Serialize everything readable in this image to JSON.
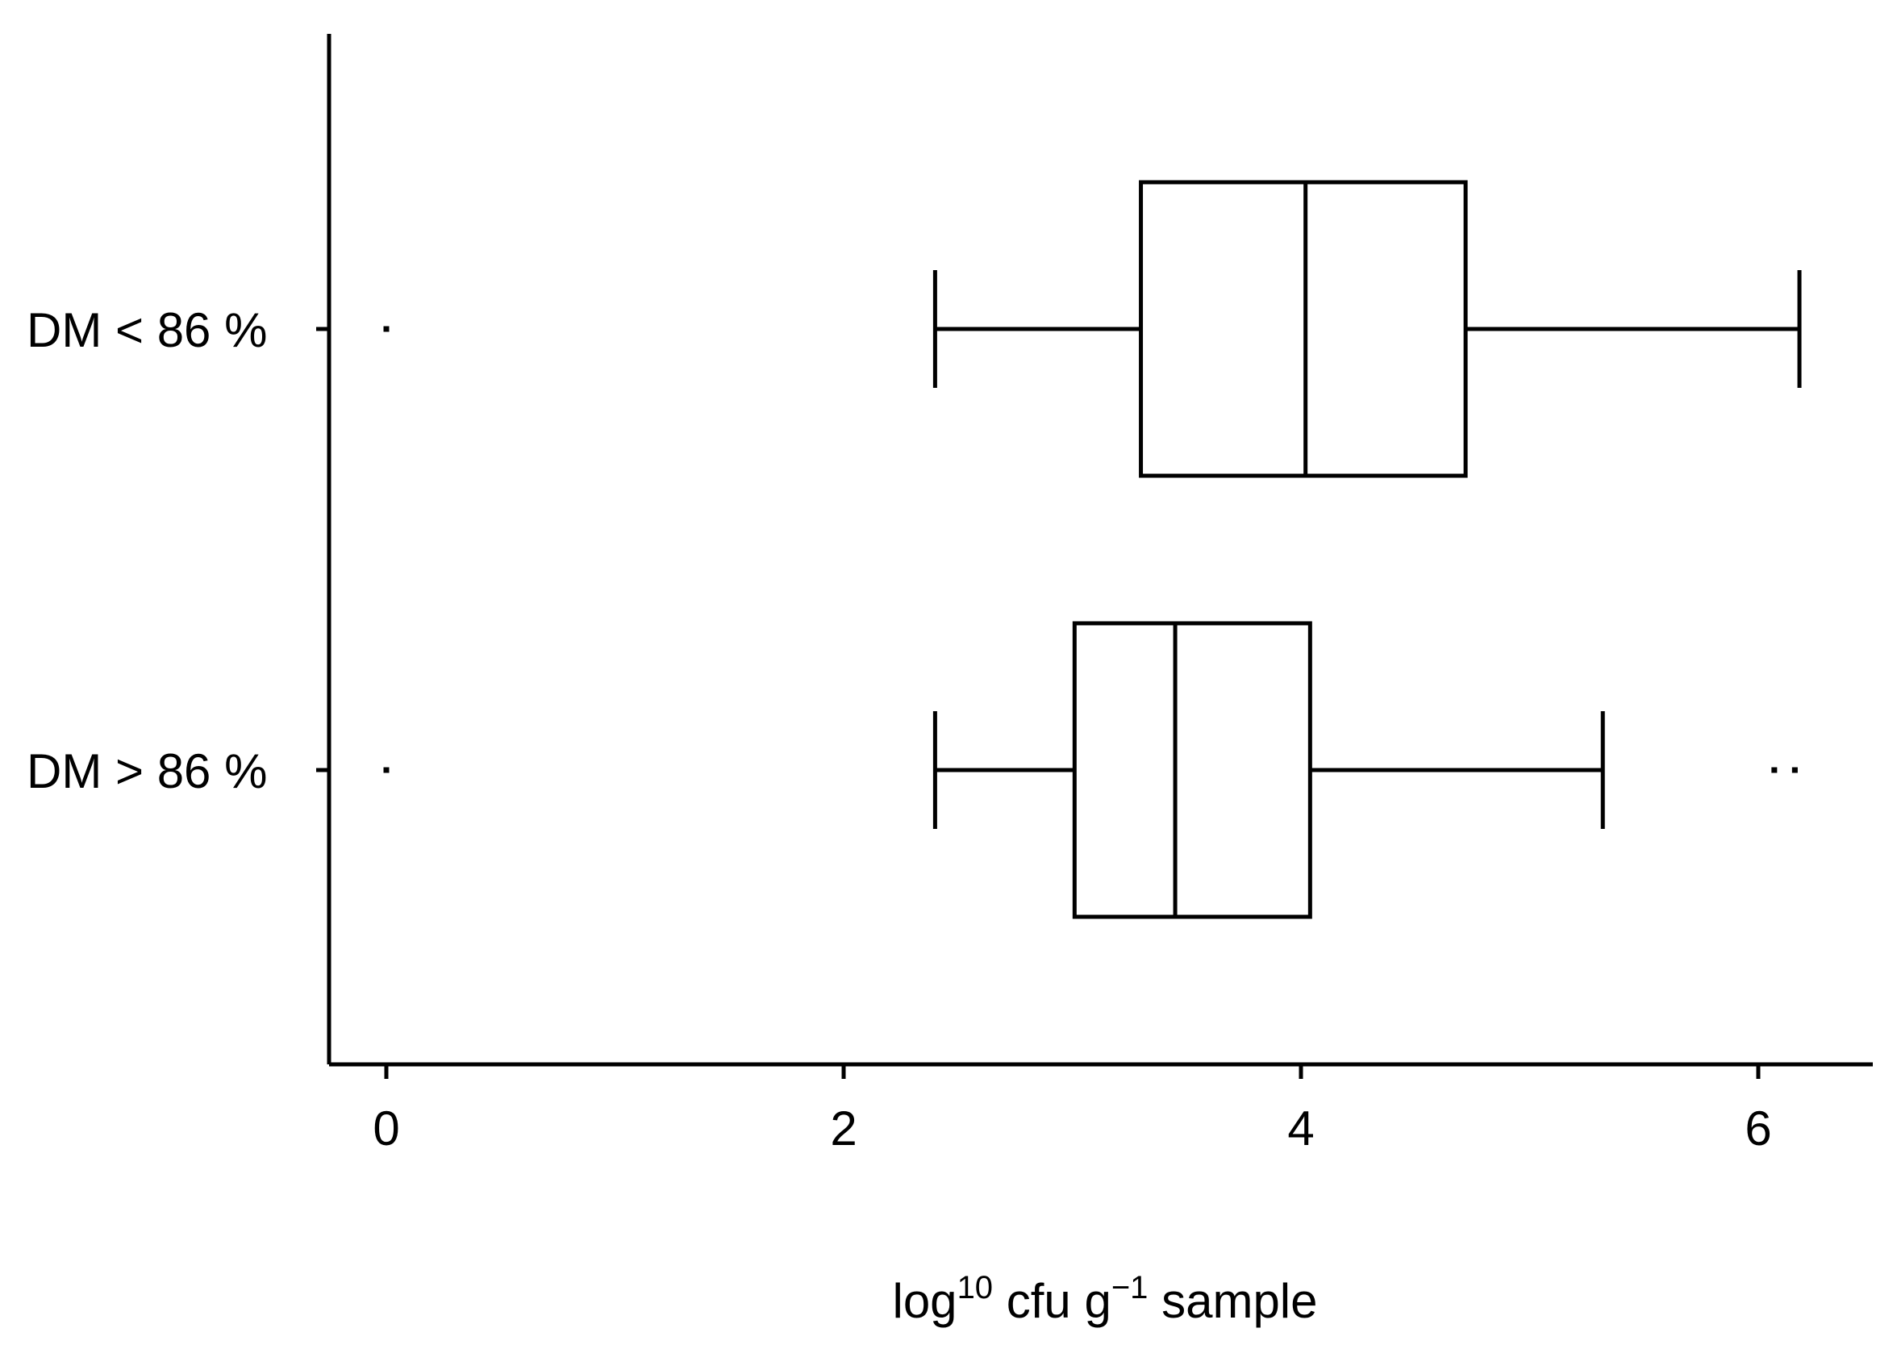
{
  "chart_data": {
    "type": "boxplot",
    "orientation": "horizontal",
    "title": "",
    "xlabel": {
      "base": "log",
      "superscript_1": "10",
      "middle": " cfu g",
      "superscript_2": "−1",
      "tail": " sample"
    },
    "ylabel": "",
    "xlim": [
      -0.25,
      6.5
    ],
    "x_ticks": [
      0,
      2,
      4,
      6
    ],
    "x_tick_labels": [
      "0",
      "2",
      "4",
      "6"
    ],
    "grid": false,
    "legend": "none",
    "categories": [
      "DM < 86 %",
      "DM > 86 %"
    ],
    "series": [
      {
        "category": "DM < 86 %",
        "whisker_low": 2.4,
        "q1": 3.3,
        "median": 4.02,
        "q3": 4.72,
        "whisker_high": 6.18,
        "outliers": [
          0.0
        ]
      },
      {
        "category": "DM > 86 %",
        "whisker_low": 2.4,
        "q1": 3.01,
        "median": 3.45,
        "q3": 4.04,
        "whisker_high": 5.32,
        "outliers": [
          0.0,
          6.07,
          6.16
        ]
      }
    ],
    "colors": {
      "stroke": "#000000",
      "box_fill": "#ffffff",
      "background": "#ffffff"
    }
  }
}
